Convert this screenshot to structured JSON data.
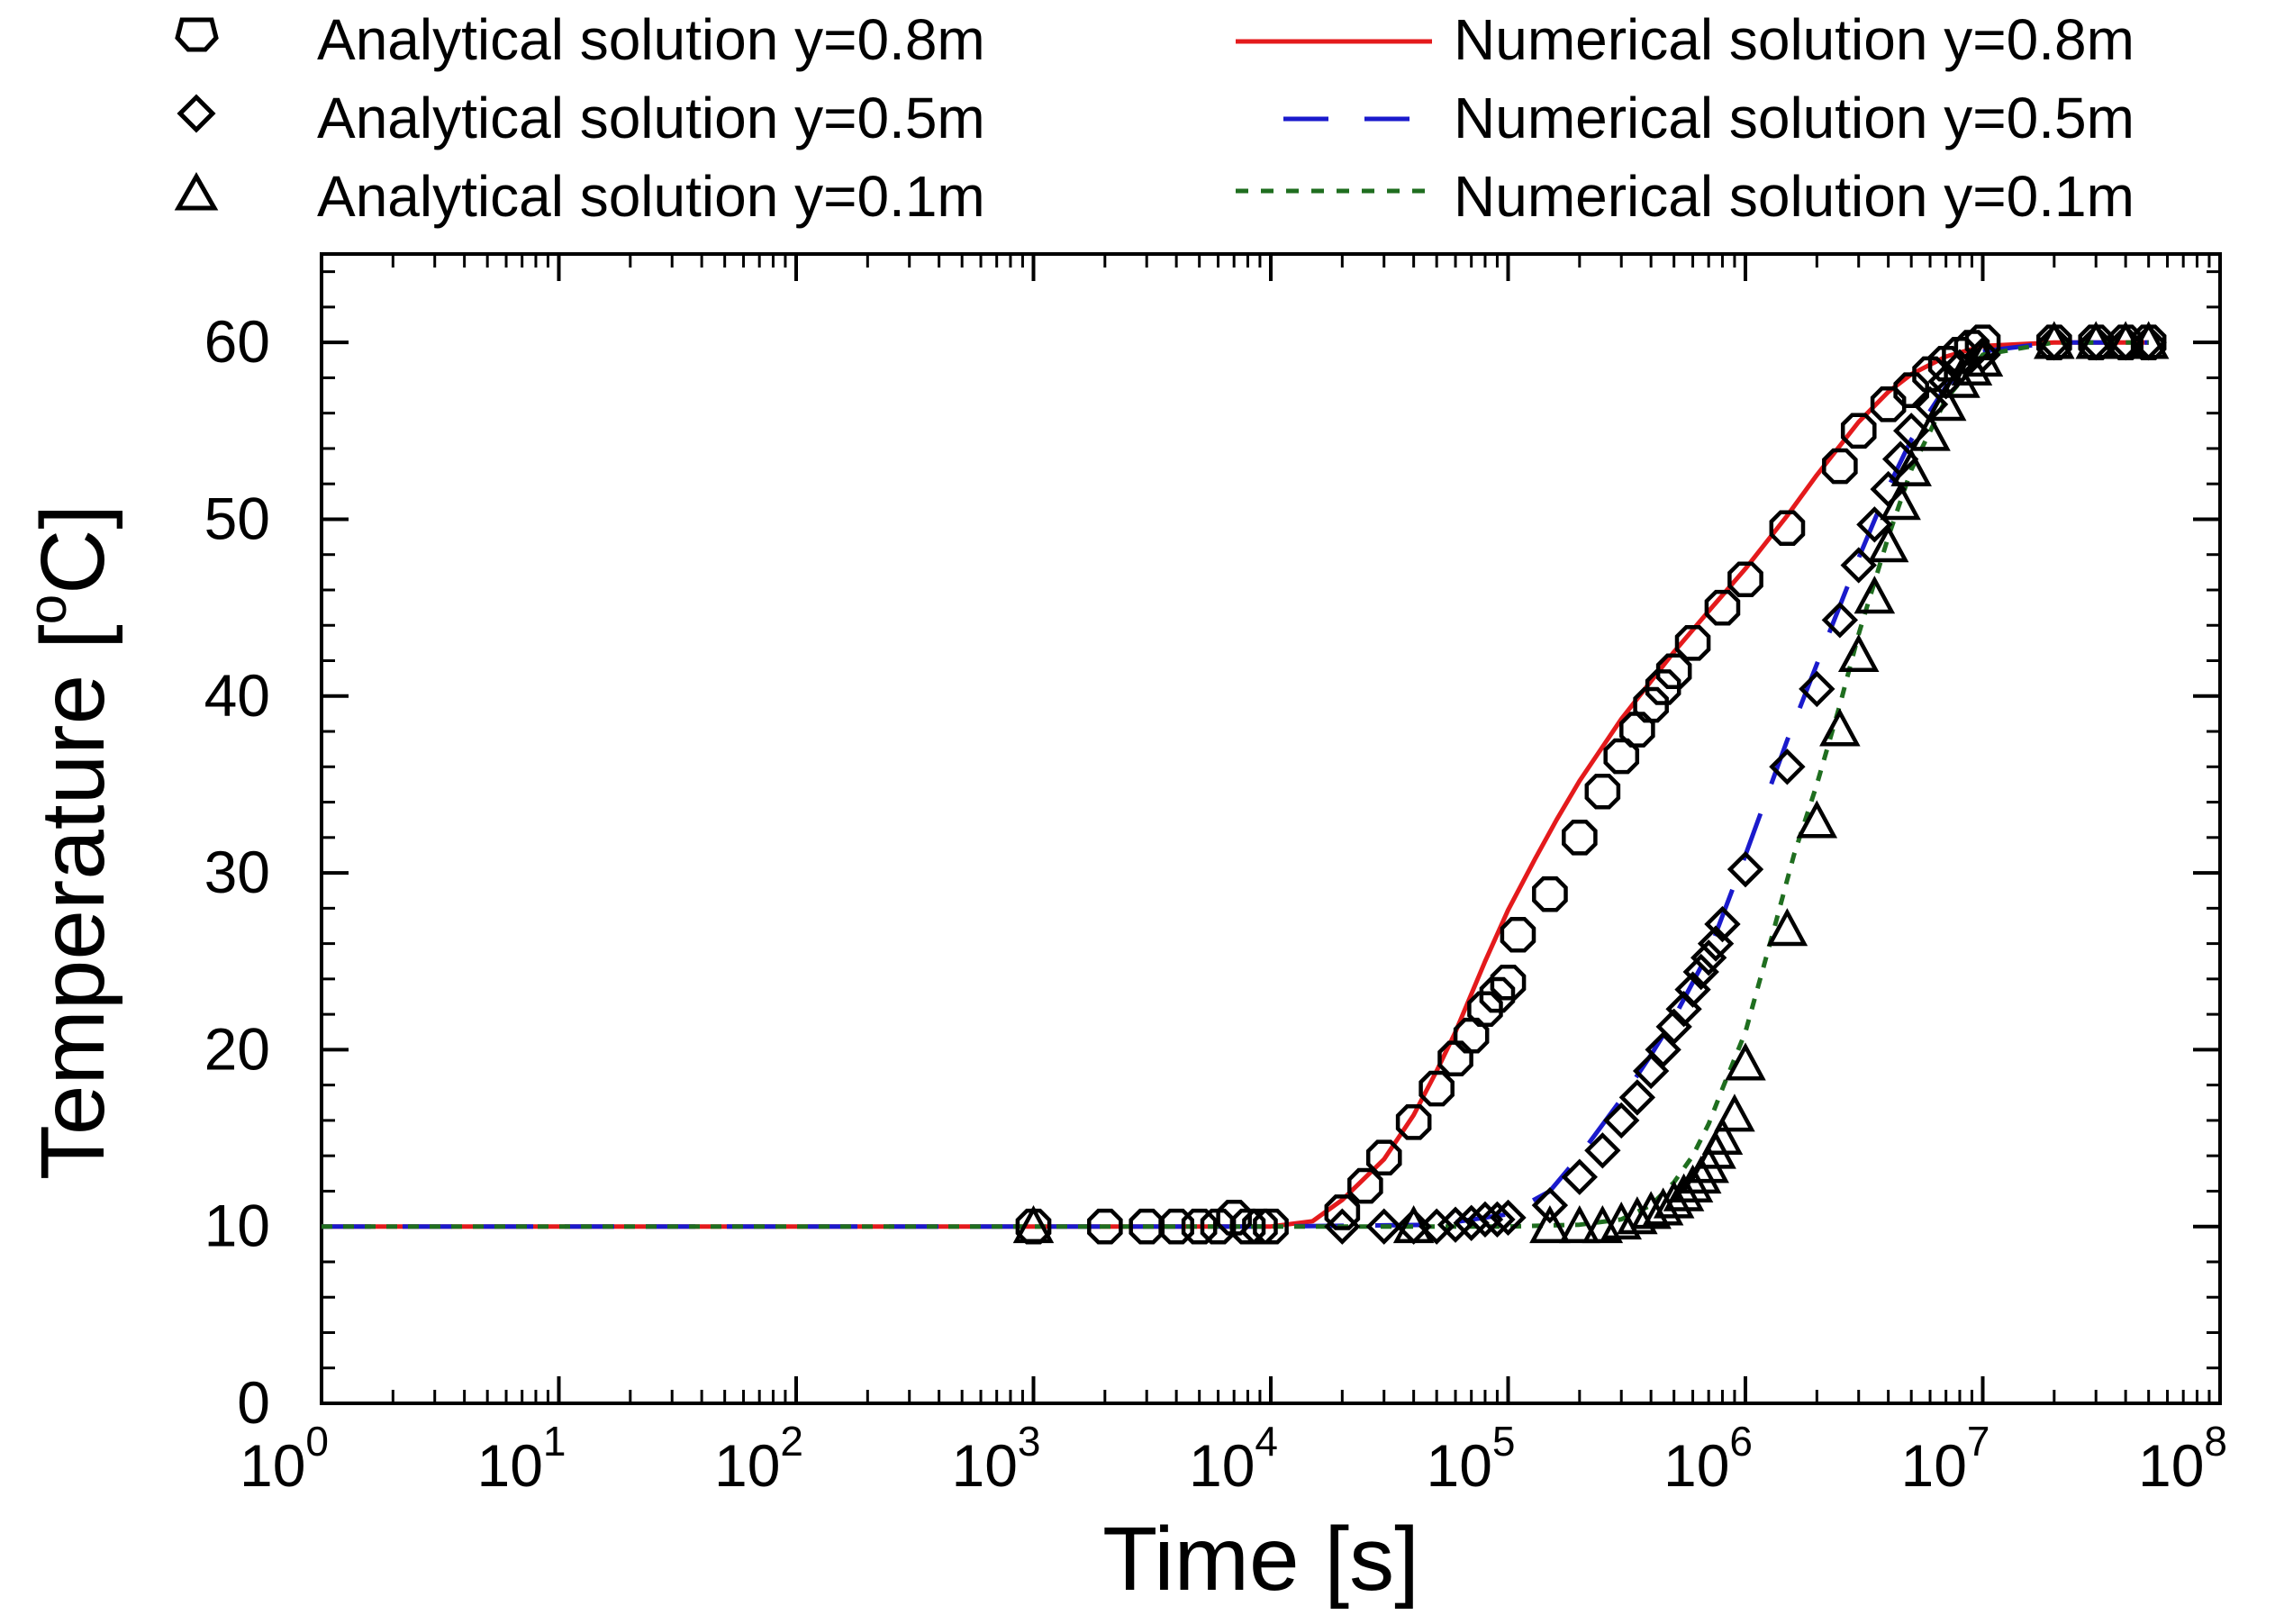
{
  "chart_data": {
    "type": "scatter",
    "title": "",
    "xlabel": "Time [s]",
    "ylabel_main": "Temperature [",
    "ylabel_sup": "o",
    "ylabel_end": "C]",
    "xscale": "log",
    "xlim": [
      1,
      100000000
    ],
    "ylim": [
      0,
      65
    ],
    "x_ticks": [
      {
        "value": 1,
        "base": "10",
        "exp": "0"
      },
      {
        "value": 10,
        "base": "10",
        "exp": "1"
      },
      {
        "value": 100,
        "base": "10",
        "exp": "2"
      },
      {
        "value": 1000,
        "base": "10",
        "exp": "3"
      },
      {
        "value": 10000,
        "base": "10",
        "exp": "4"
      },
      {
        "value": 100000,
        "base": "10",
        "exp": "5"
      },
      {
        "value": 1000000,
        "base": "10",
        "exp": "6"
      },
      {
        "value": 10000000,
        "base": "10",
        "exp": "7"
      },
      {
        "value": 100000000,
        "base": "10",
        "exp": "8"
      }
    ],
    "y_ticks": [
      "0",
      "10",
      "20",
      "30",
      "40",
      "50",
      "60"
    ],
    "grid": false,
    "legend_position": "top",
    "colors": {
      "analytical": "#000000",
      "num_08": "#e41a1c",
      "num_05": "#1a1acc",
      "num_01": "#1f6e1f"
    },
    "analytical_series": [
      {
        "name": "Analytical solution y=0.8m",
        "marker": "octagon",
        "x": [
          1000,
          2000,
          3000,
          4000,
          5000,
          6000,
          7000,
          8000,
          9000,
          10000,
          20000,
          25000,
          30000,
          40000,
          50000,
          60000,
          70000,
          80000,
          90000,
          100000,
          110000,
          150000,
          200000,
          250000,
          300000,
          350000,
          400000,
          450000,
          500000,
          600000,
          800000,
          1000000,
          1500000,
          2500000,
          3000000,
          4000000,
          5000000,
          6000000,
          7000000,
          8000000,
          9000000,
          10000000,
          20000000,
          30000000,
          40000000,
          50000000
        ],
        "y": [
          10,
          10,
          10,
          10,
          10,
          10,
          10.5,
          10,
          10,
          10,
          10.8,
          12.3,
          13.9,
          15.9,
          17.8,
          19.5,
          20.8,
          22.3,
          23.1,
          23.8,
          26.5,
          28.8,
          32.0,
          34.6,
          36.6,
          38.1,
          39.5,
          40.5,
          41.4,
          43.0,
          45.0,
          46.6,
          49.5,
          53.0,
          55.0,
          56.5,
          57.3,
          58.2,
          58.8,
          59.3,
          59.7,
          60,
          60,
          60,
          60,
          60
        ]
      },
      {
        "name": "Analytical solution y=0.5m",
        "marker": "diamond",
        "x": [
          20000,
          30000,
          40000,
          50000,
          60000,
          70000,
          80000,
          90000,
          100000,
          150000,
          200000,
          250000,
          300000,
          350000,
          400000,
          450000,
          500000,
          550000,
          600000,
          650000,
          700000,
          750000,
          800000,
          1000000,
          1500000,
          2000000,
          2500000,
          3000000,
          3500000,
          4000000,
          4500000,
          5000000,
          6000000,
          7000000,
          8000000,
          10000000,
          20000000,
          30000000,
          40000000,
          50000000
        ],
        "y": [
          10,
          10,
          10,
          10,
          10.1,
          10.2,
          10.4,
          10.4,
          10.5,
          11.2,
          12.8,
          14.3,
          16.0,
          17.3,
          18.8,
          20.0,
          21.3,
          22.3,
          23.4,
          24.4,
          25.2,
          26.0,
          27.1,
          30.2,
          36.0,
          40.4,
          44.3,
          47.4,
          49.7,
          51.7,
          53.4,
          55.0,
          56.5,
          57.8,
          58.6,
          59.3,
          60,
          60,
          60,
          60
        ]
      },
      {
        "name": "Analytical solution y=0.1m",
        "marker": "triangle",
        "x": [
          1000,
          40000,
          150000,
          200000,
          250000,
          300000,
          350000,
          400000,
          450000,
          500000,
          550000,
          600000,
          650000,
          700000,
          750000,
          800000,
          900000,
          1000000,
          1500000,
          2000000,
          2500000,
          3000000,
          3500000,
          4000000,
          4500000,
          5000000,
          6000000,
          7000000,
          8000000,
          9000000,
          10000000,
          20000000,
          30000000,
          40000000,
          50000000
        ],
        "y": [
          10,
          10,
          10,
          10,
          10,
          10.2,
          10.5,
          10.8,
          11.0,
          11.4,
          11.8,
          12.3,
          12.8,
          13.4,
          14.2,
          15.0,
          16.3,
          19.2,
          26.8,
          32.9,
          38.1,
          42.3,
          45.6,
          48.5,
          50.9,
          52.8,
          54.8,
          56.5,
          57.8,
          58.5,
          59.0,
          60,
          60,
          60,
          60
        ]
      }
    ],
    "numerical_series": [
      {
        "name": "Numerical solution y=0.8m",
        "style": "solid",
        "x": [
          1,
          10,
          100,
          1000,
          10000,
          15000,
          20000,
          30000,
          40000,
          50000,
          60000,
          80000,
          100000,
          130000,
          160000,
          200000,
          300000,
          500000,
          700000,
          1000000,
          1500000,
          2000000,
          3000000,
          4000000,
          5000000,
          7000000,
          10000000,
          20000000,
          50000000
        ],
        "y": [
          10,
          10,
          10,
          10,
          10,
          10.3,
          11.5,
          13.8,
          16.3,
          18.8,
          21.0,
          25.0,
          27.9,
          30.8,
          33.0,
          35.2,
          38.7,
          42.5,
          44.8,
          47.2,
          50.2,
          52.5,
          55.5,
          57.2,
          58.2,
          59.2,
          59.8,
          60,
          60
        ]
      },
      {
        "name": "Numerical solution y=0.5m",
        "style": "dash",
        "x": [
          1,
          10,
          100,
          1000,
          10000,
          50000,
          100000,
          150000,
          200000,
          300000,
          400000,
          500000,
          700000,
          1000000,
          1500000,
          2000000,
          3000000,
          4000000,
          5000000,
          7000000,
          10000000,
          20000000,
          50000000
        ],
        "y": [
          10,
          10,
          10,
          10,
          10,
          10.1,
          10.7,
          12.0,
          14.0,
          17.2,
          19.7,
          21.8,
          25.5,
          31.0,
          37.5,
          41.8,
          47.8,
          51.8,
          54.5,
          57.5,
          59.5,
          60,
          60
        ]
      },
      {
        "name": "Numerical solution y=0.1m",
        "style": "dot",
        "x": [
          1,
          10,
          100,
          1000,
          10000,
          100000,
          200000,
          300000,
          400000,
          500000,
          600000,
          700000,
          800000,
          1000000,
          1300000,
          1600000,
          2000000,
          2500000,
          3000000,
          4000000,
          5000000,
          7000000,
          10000000,
          20000000,
          50000000
        ],
        "y": [
          10,
          10,
          10,
          10,
          10,
          10,
          10.1,
          10.4,
          11.2,
          12.5,
          14.0,
          15.8,
          17.8,
          21.0,
          26.5,
          31.0,
          35.0,
          39.5,
          43.5,
          49.0,
          52.8,
          56.8,
          59.3,
          60,
          60
        ]
      }
    ]
  }
}
